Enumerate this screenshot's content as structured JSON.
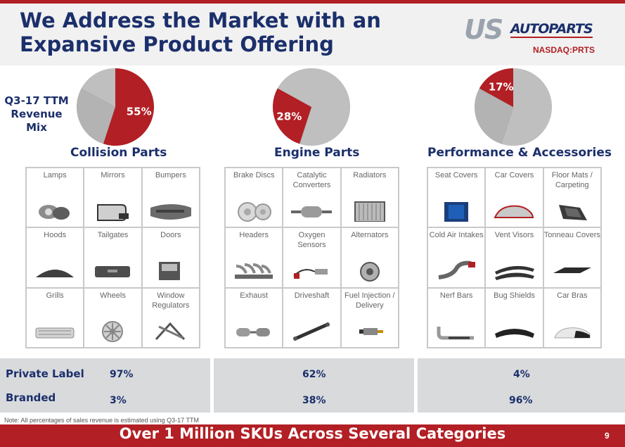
{
  "header": {
    "title": "We Address the Market with an Expansive Product Offering",
    "logo": {
      "us": "US",
      "autoparts": "AUTOPARTS"
    },
    "ticker": "NASDAQ:PRTS"
  },
  "revenue_mix_label": "Q3-17 TTM Revenue Mix",
  "segments": [
    {
      "name": "Collision Parts",
      "revenue_share": "55%",
      "private_label": "97%",
      "branded": "3%",
      "items": [
        {
          "label": "Lamps",
          "icon": "lamp-icon"
        },
        {
          "label": "Mirrors",
          "icon": "mirror-icon"
        },
        {
          "label": "Bumpers",
          "icon": "bumper-icon"
        },
        {
          "label": "Hoods",
          "icon": "hood-icon"
        },
        {
          "label": "Tailgates",
          "icon": "tailgate-icon"
        },
        {
          "label": "Doors",
          "icon": "door-icon"
        },
        {
          "label": "Grills",
          "icon": "grill-icon"
        },
        {
          "label": "Wheels",
          "icon": "wheel-icon"
        },
        {
          "label": "Window Regulators",
          "icon": "window-regulator-icon"
        }
      ]
    },
    {
      "name": "Engine Parts",
      "revenue_share": "28%",
      "private_label": "62%",
      "branded": "38%",
      "items": [
        {
          "label": "Brake Discs",
          "icon": "brake-disc-icon"
        },
        {
          "label": "Catalytic Converters",
          "icon": "catalytic-converter-icon"
        },
        {
          "label": "Radiators",
          "icon": "radiator-icon"
        },
        {
          "label": "Headers",
          "icon": "header-icon"
        },
        {
          "label": "Oxygen Sensors",
          "icon": "oxygen-sensor-icon"
        },
        {
          "label": "Alternators",
          "icon": "alternator-icon"
        },
        {
          "label": "Exhaust",
          "icon": "exhaust-icon"
        },
        {
          "label": "Driveshaft",
          "icon": "driveshaft-icon"
        },
        {
          "label": "Fuel Injection / Delivery",
          "icon": "fuel-injector-icon"
        }
      ]
    },
    {
      "name": "Performance & Accessories",
      "revenue_share": "17%",
      "private_label": "4%",
      "branded": "96%",
      "items": [
        {
          "label": "Seat Covers",
          "icon": "seat-cover-icon"
        },
        {
          "label": "Car Covers",
          "icon": "car-cover-icon"
        },
        {
          "label": "Floor Mats / Carpeting",
          "icon": "floor-mat-icon"
        },
        {
          "label": "Cold Air Intakes",
          "icon": "cold-air-intake-icon"
        },
        {
          "label": "Vent Visors",
          "icon": "vent-visor-icon"
        },
        {
          "label": "Tonneau Covers",
          "icon": "tonneau-cover-icon"
        },
        {
          "label": "Nerf Bars",
          "icon": "nerf-bar-icon"
        },
        {
          "label": "Bug Shields",
          "icon": "bug-shield-icon"
        },
        {
          "label": "Car Bras",
          "icon": "car-bra-icon"
        }
      ]
    }
  ],
  "rows": {
    "private_label": "Private Label",
    "branded": "Branded"
  },
  "note": "Note: All percentages of sales revenue  is estimated using Q3-17 TTM",
  "footer": {
    "tagline": "Over 1 Million SKUs Across Several Categories",
    "page": "9"
  },
  "colors": {
    "accent": "#b21f24",
    "navy": "#1b2f6b",
    "pie_gray": "#b8b8b8",
    "band": "#d8dadc"
  },
  "chart_data": [
    {
      "type": "pie",
      "categories": [
        "Collision Parts",
        "Engine Parts",
        "Performance & Accessories"
      ],
      "values": [
        55,
        28,
        17
      ],
      "highlight": 0,
      "title": "Collision Parts"
    },
    {
      "type": "pie",
      "categories": [
        "Collision Parts",
        "Engine Parts",
        "Performance & Accessories"
      ],
      "values": [
        55,
        28,
        17
      ],
      "highlight": 1,
      "title": "Engine Parts"
    },
    {
      "type": "pie",
      "categories": [
        "Collision Parts",
        "Engine Parts",
        "Performance & Accessories"
      ],
      "values": [
        55,
        28,
        17
      ],
      "highlight": 2,
      "title": "Performance & Accessories"
    }
  ]
}
